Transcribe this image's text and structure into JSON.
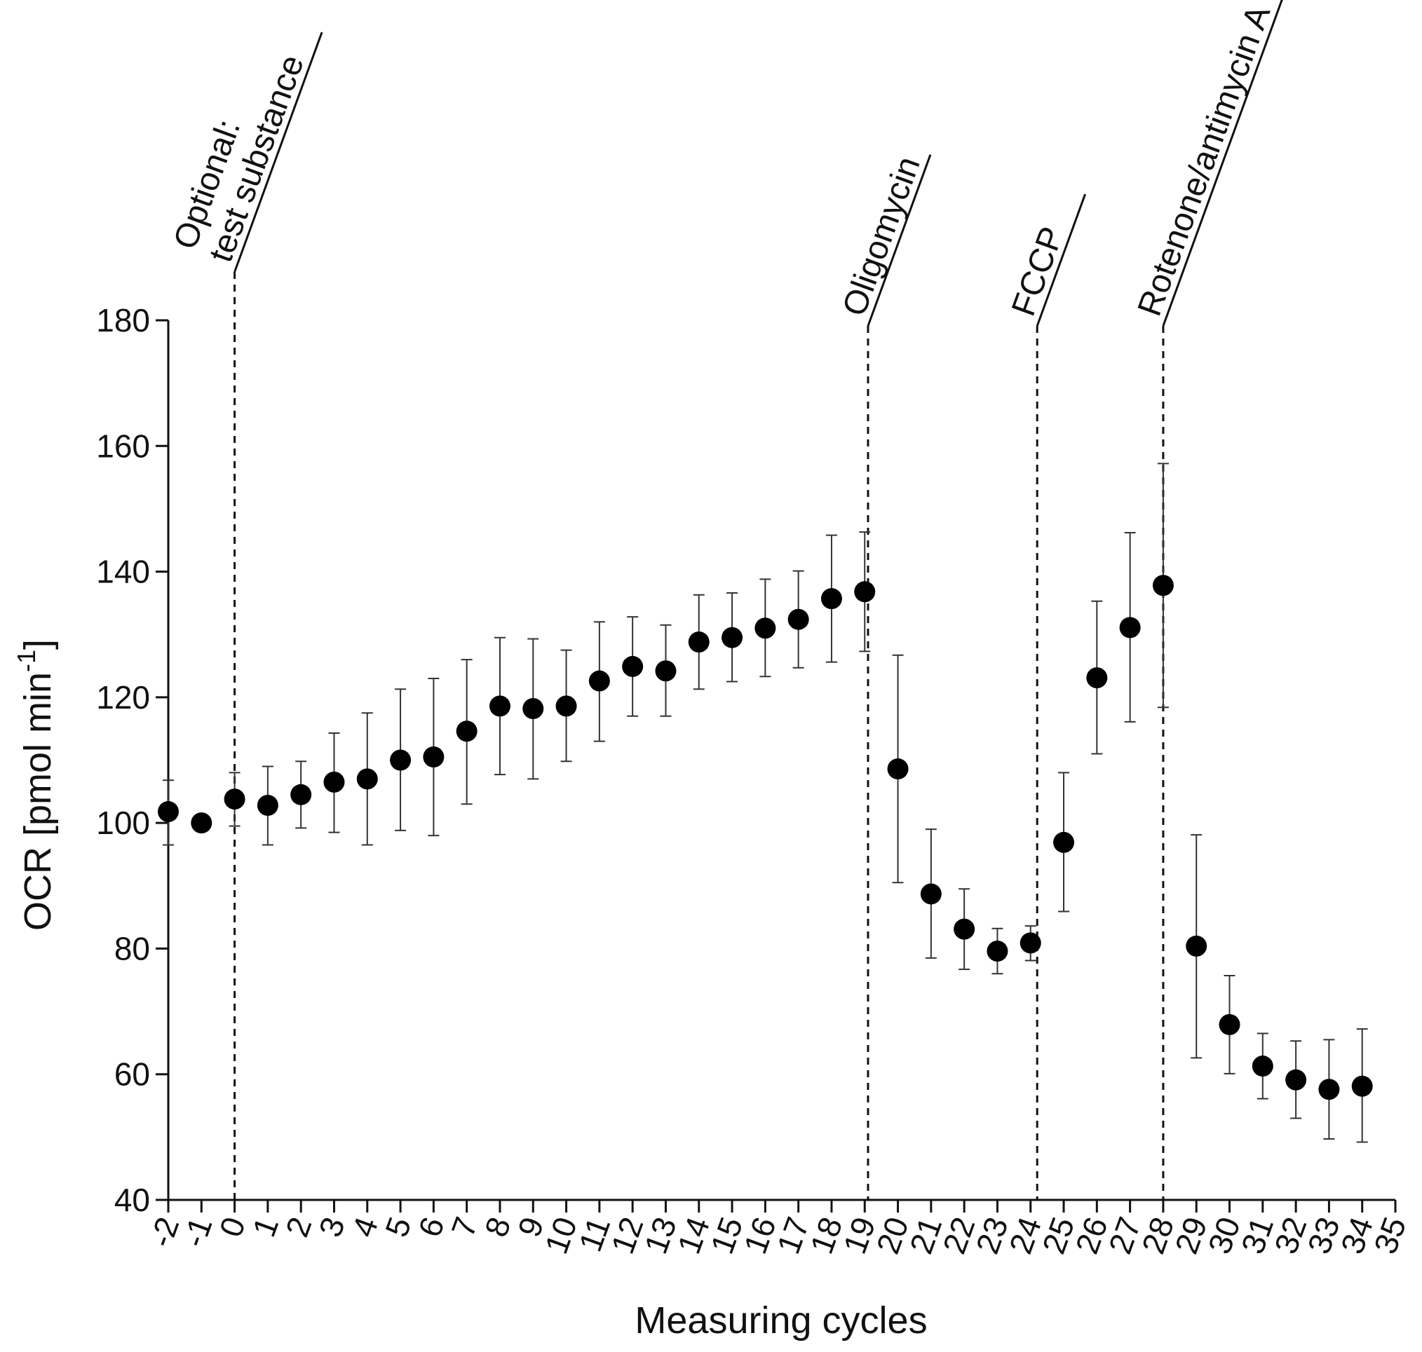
{
  "chart_data": {
    "type": "scatter",
    "xlabel": "Measuring cycles",
    "ylabel": "OCR [pmol min",
    "ylabel_sup": "-1",
    "ylabel_close": "]",
    "ylim": [
      40,
      180
    ],
    "yticks": [
      40,
      60,
      80,
      100,
      120,
      140,
      160,
      180
    ],
    "xlim": [
      -2,
      35
    ],
    "xticks": [
      -2,
      -1,
      0,
      1,
      2,
      3,
      4,
      5,
      6,
      7,
      8,
      9,
      10,
      11,
      12,
      13,
      14,
      15,
      16,
      17,
      18,
      19,
      20,
      21,
      22,
      23,
      24,
      25,
      26,
      27,
      28,
      29,
      30,
      31,
      32,
      33,
      34,
      35
    ],
    "grid": false,
    "marker_color": "#000000",
    "points": [
      {
        "x": -2,
        "y": 101.8,
        "low": 96.5,
        "high": 106.8
      },
      {
        "x": -1,
        "y": 100.0,
        "low": 100.0,
        "high": 100.0
      },
      {
        "x": 0,
        "y": 103.8,
        "low": 99.5,
        "high": 108.0
      },
      {
        "x": 1,
        "y": 102.8,
        "low": 96.5,
        "high": 109.0
      },
      {
        "x": 2,
        "y": 104.5,
        "low": 99.2,
        "high": 109.8
      },
      {
        "x": 3,
        "y": 106.5,
        "low": 98.5,
        "high": 114.3
      },
      {
        "x": 4,
        "y": 107.0,
        "low": 96.5,
        "high": 117.5
      },
      {
        "x": 5,
        "y": 110.0,
        "low": 98.8,
        "high": 121.3
      },
      {
        "x": 6,
        "y": 110.5,
        "low": 98.0,
        "high": 123.0
      },
      {
        "x": 7,
        "y": 114.6,
        "low": 103.0,
        "high": 126.0
      },
      {
        "x": 8,
        "y": 118.6,
        "low": 107.7,
        "high": 129.5
      },
      {
        "x": 9,
        "y": 118.2,
        "low": 107.0,
        "high": 129.3
      },
      {
        "x": 10,
        "y": 118.6,
        "low": 109.8,
        "high": 127.5
      },
      {
        "x": 11,
        "y": 122.6,
        "low": 113.0,
        "high": 132.0
      },
      {
        "x": 12,
        "y": 124.9,
        "low": 117.0,
        "high": 132.8
      },
      {
        "x": 13,
        "y": 124.2,
        "low": 117.0,
        "high": 131.5
      },
      {
        "x": 14,
        "y": 128.8,
        "low": 121.3,
        "high": 136.3
      },
      {
        "x": 15,
        "y": 129.5,
        "low": 122.5,
        "high": 136.6
      },
      {
        "x": 16,
        "y": 131.0,
        "low": 123.3,
        "high": 138.8
      },
      {
        "x": 17,
        "y": 132.4,
        "low": 124.7,
        "high": 140.1
      },
      {
        "x": 18,
        "y": 135.7,
        "low": 125.6,
        "high": 145.8
      },
      {
        "x": 19,
        "y": 136.8,
        "low": 127.3,
        "high": 146.3
      },
      {
        "x": 20,
        "y": 108.6,
        "low": 90.5,
        "high": 126.7
      },
      {
        "x": 21,
        "y": 88.7,
        "low": 78.5,
        "high": 99.0
      },
      {
        "x": 22,
        "y": 83.1,
        "low": 76.7,
        "high": 89.5
      },
      {
        "x": 23,
        "y": 79.6,
        "low": 76.0,
        "high": 83.2
      },
      {
        "x": 24,
        "y": 80.9,
        "low": 78.1,
        "high": 83.6
      },
      {
        "x": 25,
        "y": 96.9,
        "low": 85.9,
        "high": 108.0
      },
      {
        "x": 26,
        "y": 123.1,
        "low": 111.0,
        "high": 135.3
      },
      {
        "x": 27,
        "y": 131.1,
        "low": 116.1,
        "high": 146.2
      },
      {
        "x": 28,
        "y": 137.8,
        "low": 118.4,
        "high": 157.2
      },
      {
        "x": 29,
        "y": 80.4,
        "low": 62.6,
        "high": 98.1
      },
      {
        "x": 30,
        "y": 67.9,
        "low": 60.1,
        "high": 75.7
      },
      {
        "x": 31,
        "y": 61.3,
        "low": 56.1,
        "high": 66.5
      },
      {
        "x": 32,
        "y": 59.1,
        "low": 53.0,
        "high": 65.3
      },
      {
        "x": 33,
        "y": 57.6,
        "low": 49.7,
        "high": 65.5
      },
      {
        "x": 34,
        "y": 58.1,
        "low": 49.2,
        "high": 67.2
      }
    ],
    "annotations": [
      {
        "x": 0,
        "lines": [
          "Optional:",
          "test substance"
        ]
      },
      {
        "x": 19.1,
        "lines": [
          "Oligomycin"
        ]
      },
      {
        "x": 24.2,
        "lines": [
          "FCCP"
        ]
      },
      {
        "x": 28,
        "lines": [
          "Rotenone/antimycin A"
        ]
      }
    ]
  }
}
